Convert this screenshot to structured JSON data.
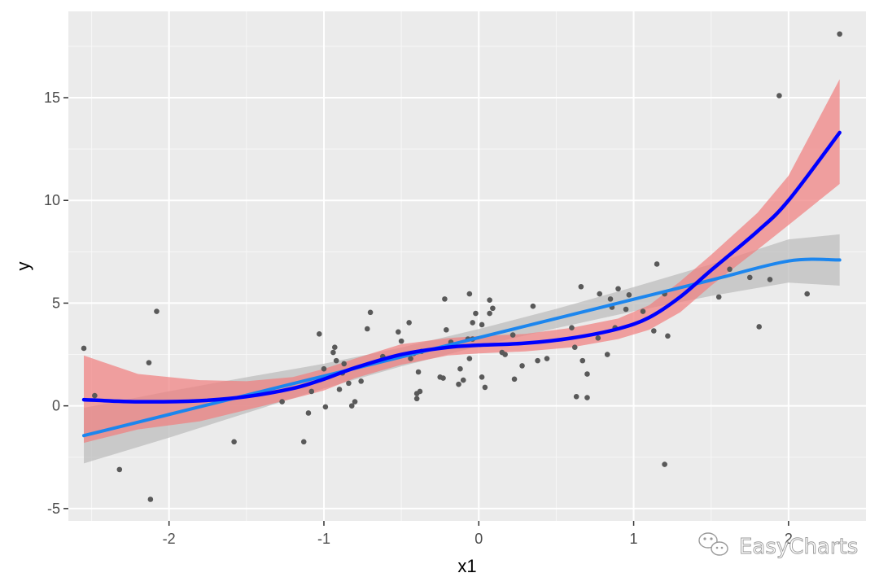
{
  "chart_data": {
    "type": "scatter",
    "title": "",
    "xlabel": "x1",
    "ylabel": "y",
    "xlim": [
      -2.65,
      2.5
    ],
    "ylim": [
      -5.6,
      19.2
    ],
    "x_ticks": [
      -2,
      -1,
      0,
      1,
      2
    ],
    "x_tick_labels": [
      "-2",
      "-1",
      "0",
      "1",
      "2"
    ],
    "y_ticks": [
      -5,
      0,
      5,
      10,
      15
    ],
    "y_tick_labels": [
      "-5",
      "0",
      "5",
      "10",
      "15"
    ],
    "grid": true,
    "legend": "none",
    "points": {
      "color": "#595959",
      "values": [
        [
          -2.55,
          2.8
        ],
        [
          -2.48,
          0.5
        ],
        [
          -2.32,
          -3.1
        ],
        [
          -2.13,
          2.1
        ],
        [
          -2.12,
          -4.55
        ],
        [
          -2.08,
          4.6
        ],
        [
          -1.58,
          -1.75
        ],
        [
          -1.27,
          0.2
        ],
        [
          -1.13,
          -1.75
        ],
        [
          -1.1,
          -0.35
        ],
        [
          -1.08,
          0.7
        ],
        [
          -1.03,
          3.5
        ],
        [
          -1.0,
          1.8
        ],
        [
          -0.99,
          -0.05
        ],
        [
          -0.94,
          2.6
        ],
        [
          -0.93,
          2.85
        ],
        [
          -0.92,
          2.2
        ],
        [
          -0.9,
          0.8
        ],
        [
          -0.88,
          1.6
        ],
        [
          -0.87,
          2.05
        ],
        [
          -0.84,
          1.1
        ],
        [
          -0.82,
          0.0
        ],
        [
          -0.8,
          0.2
        ],
        [
          -0.76,
          1.2
        ],
        [
          -0.72,
          3.75
        ],
        [
          -0.7,
          4.55
        ],
        [
          -0.62,
          2.4
        ],
        [
          -0.52,
          3.6
        ],
        [
          -0.5,
          3.15
        ],
        [
          -0.45,
          4.05
        ],
        [
          -0.44,
          2.3
        ],
        [
          -0.42,
          2.55
        ],
        [
          -0.4,
          0.6
        ],
        [
          -0.4,
          0.35
        ],
        [
          -0.39,
          1.65
        ],
        [
          -0.38,
          0.7
        ],
        [
          -0.37,
          2.65
        ],
        [
          -0.25,
          1.4
        ],
        [
          -0.23,
          1.35
        ],
        [
          -0.22,
          5.2
        ],
        [
          -0.21,
          3.7
        ],
        [
          -0.18,
          3.1
        ],
        [
          -0.13,
          1.05
        ],
        [
          -0.12,
          1.8
        ],
        [
          -0.1,
          1.25
        ],
        [
          -0.07,
          3.25
        ],
        [
          -0.06,
          5.45
        ],
        [
          -0.06,
          2.3
        ],
        [
          -0.04,
          4.05
        ],
        [
          -0.04,
          3.25
        ],
        [
          -0.02,
          4.5
        ],
        [
          0.02,
          3.95
        ],
        [
          0.02,
          1.4
        ],
        [
          0.04,
          0.9
        ],
        [
          0.07,
          5.15
        ],
        [
          0.07,
          4.5
        ],
        [
          0.09,
          4.75
        ],
        [
          0.15,
          2.6
        ],
        [
          0.17,
          2.5
        ],
        [
          0.22,
          3.45
        ],
        [
          0.23,
          1.3
        ],
        [
          0.28,
          1.95
        ],
        [
          0.35,
          4.85
        ],
        [
          0.38,
          2.2
        ],
        [
          0.44,
          2.3
        ],
        [
          0.6,
          3.8
        ],
        [
          0.62,
          2.85
        ],
        [
          0.63,
          0.45
        ],
        [
          0.66,
          5.8
        ],
        [
          0.67,
          2.2
        ],
        [
          0.7,
          1.55
        ],
        [
          0.7,
          0.4
        ],
        [
          0.77,
          3.3
        ],
        [
          0.78,
          5.45
        ],
        [
          0.83,
          2.5
        ],
        [
          0.85,
          5.2
        ],
        [
          0.86,
          4.8
        ],
        [
          0.88,
          3.8
        ],
        [
          0.9,
          5.7
        ],
        [
          0.95,
          4.7
        ],
        [
          0.97,
          5.4
        ],
        [
          1.06,
          4.6
        ],
        [
          1.13,
          3.65
        ],
        [
          1.15,
          6.9
        ],
        [
          1.2,
          5.45
        ],
        [
          1.2,
          -2.85
        ],
        [
          1.22,
          3.4
        ],
        [
          1.55,
          5.3
        ],
        [
          1.62,
          6.65
        ],
        [
          1.75,
          6.25
        ],
        [
          1.81,
          3.85
        ],
        [
          1.88,
          6.15
        ],
        [
          1.94,
          15.1
        ],
        [
          2.12,
          5.45
        ],
        [
          2.33,
          18.1
        ]
      ]
    },
    "linear_fit": {
      "color": "#1c86ee",
      "ribbon_color": "#bdbdbd",
      "x": [
        -2.55,
        -2.0,
        -1.5,
        -1.0,
        -0.5,
        0.0,
        0.5,
        1.0,
        1.5,
        2.0,
        2.33
      ],
      "y": [
        -1.45,
        -0.42,
        0.52,
        1.45,
        2.38,
        3.32,
        4.25,
        5.19,
        6.12,
        7.05,
        7.1
      ],
      "lower": [
        -2.8,
        -1.55,
        -0.35,
        0.85,
        1.92,
        2.9,
        3.78,
        4.6,
        5.35,
        6.0,
        5.85
      ],
      "upper": [
        -0.1,
        0.71,
        1.39,
        2.05,
        2.84,
        3.74,
        4.72,
        5.78,
        6.89,
        8.1,
        8.35
      ]
    },
    "poly_fit": {
      "color": "#0000ff",
      "ribbon_color": "#f08080",
      "x": [
        -2.55,
        -2.2,
        -1.8,
        -1.5,
        -1.2,
        -1.0,
        -0.8,
        -0.5,
        -0.2,
        0.0,
        0.3,
        0.6,
        0.9,
        1.1,
        1.3,
        1.5,
        1.8,
        2.0,
        2.33
      ],
      "y": [
        0.3,
        0.2,
        0.25,
        0.45,
        0.85,
        1.3,
        1.85,
        2.5,
        2.85,
        2.95,
        3.05,
        3.3,
        3.75,
        4.3,
        5.3,
        6.6,
        8.5,
        10.0,
        13.3
      ],
      "lower": [
        -1.8,
        -1.15,
        -0.75,
        -0.2,
        0.35,
        0.75,
        1.35,
        2.0,
        2.45,
        2.55,
        2.65,
        2.85,
        3.25,
        3.7,
        4.55,
        5.85,
        7.6,
        8.8,
        10.8
      ],
      "upper": [
        2.45,
        1.55,
        1.25,
        1.2,
        1.4,
        1.8,
        2.3,
        3.0,
        3.3,
        3.4,
        3.5,
        3.8,
        4.25,
        4.9,
        6.05,
        7.35,
        9.4,
        11.2,
        15.9
      ]
    }
  },
  "watermark": {
    "text": "EasyCharts",
    "icon": "wechat-icon"
  }
}
